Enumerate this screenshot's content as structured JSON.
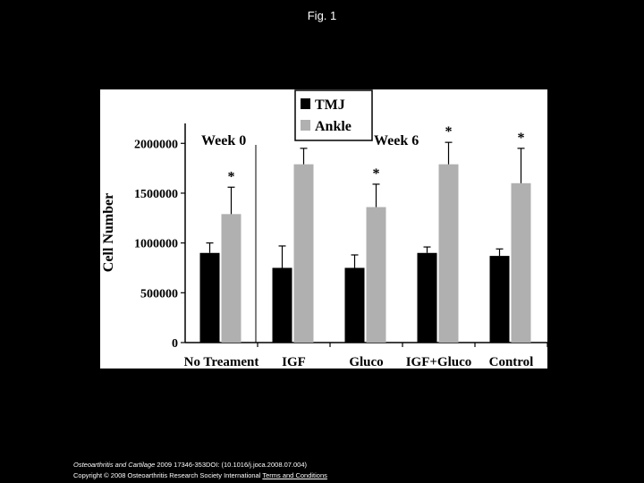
{
  "slide": {
    "title": "Fig. 1"
  },
  "chart_data": {
    "type": "bar",
    "categories": [
      "No Treament",
      "IGF",
      "Gluco",
      "IGF+Gluco",
      "Control"
    ],
    "series": [
      {
        "name": "TMJ",
        "values": [
          900000,
          750000,
          750000,
          900000,
          870000
        ],
        "errors": [
          100000,
          220000,
          130000,
          60000,
          70000
        ],
        "color": "#000000"
      },
      {
        "name": "Ankle",
        "values": [
          1290000,
          1790000,
          1360000,
          1790000,
          1600000
        ],
        "errors": [
          270000,
          160000,
          230000,
          220000,
          350000
        ],
        "color": "#b0b0b0"
      }
    ],
    "significance": [
      "*",
      "*",
      "*",
      "*",
      "*"
    ],
    "group_labels": [
      "Week 0",
      "Week 6"
    ],
    "ylabel": "Cell Number",
    "xlabel": "",
    "ylim": [
      0,
      2200000
    ],
    "yticks": [
      "0",
      "500000",
      "1000000",
      "1500000",
      "2000000"
    ],
    "legend_position": "top-center",
    "grid": false
  },
  "citation": {
    "journal": "Osteoarthritis and Cartilage",
    "details": " 2009 17346-353DOI: (10.1016/j.joca.2008.07.004) ",
    "copyright": "Copyright © 2008 Osteoarthritis Research Society International ",
    "terms_link": "Terms and Conditions"
  }
}
